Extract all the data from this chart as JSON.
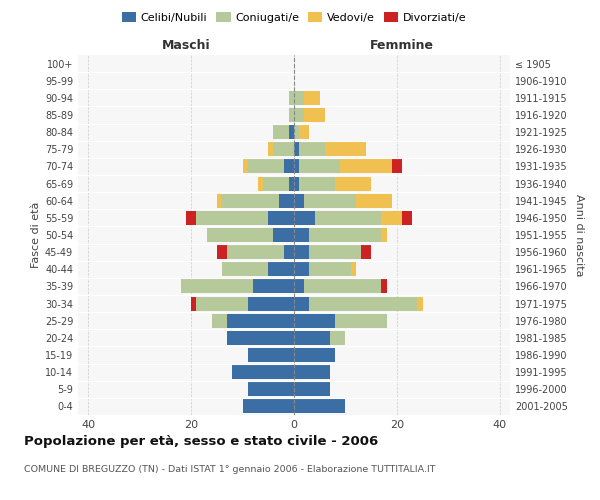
{
  "age_groups": [
    "0-4",
    "5-9",
    "10-14",
    "15-19",
    "20-24",
    "25-29",
    "30-34",
    "35-39",
    "40-44",
    "45-49",
    "50-54",
    "55-59",
    "60-64",
    "65-69",
    "70-74",
    "75-79",
    "80-84",
    "85-89",
    "90-94",
    "95-99",
    "100+"
  ],
  "birth_years": [
    "2001-2005",
    "1996-2000",
    "1991-1995",
    "1986-1990",
    "1981-1985",
    "1976-1980",
    "1971-1975",
    "1966-1970",
    "1961-1965",
    "1956-1960",
    "1951-1955",
    "1946-1950",
    "1941-1945",
    "1936-1940",
    "1931-1935",
    "1926-1930",
    "1921-1925",
    "1916-1920",
    "1911-1915",
    "1906-1910",
    "≤ 1905"
  ],
  "males_celibe": [
    10,
    9,
    12,
    9,
    13,
    13,
    9,
    8,
    5,
    2,
    4,
    5,
    3,
    1,
    2,
    0,
    1,
    0,
    0,
    0,
    0
  ],
  "males_coniugato": [
    0,
    0,
    0,
    0,
    0,
    3,
    10,
    14,
    9,
    11,
    13,
    14,
    11,
    5,
    7,
    4,
    3,
    1,
    1,
    0,
    0
  ],
  "males_vedovo": [
    0,
    0,
    0,
    0,
    0,
    0,
    0,
    0,
    0,
    0,
    0,
    0,
    1,
    1,
    1,
    1,
    0,
    0,
    0,
    0,
    0
  ],
  "males_divorziato": [
    0,
    0,
    0,
    0,
    0,
    0,
    1,
    0,
    0,
    2,
    0,
    2,
    0,
    0,
    0,
    0,
    0,
    0,
    0,
    0,
    0
  ],
  "females_nubile": [
    10,
    7,
    7,
    8,
    7,
    8,
    3,
    2,
    3,
    3,
    3,
    4,
    2,
    1,
    1,
    1,
    0,
    0,
    0,
    0,
    0
  ],
  "females_coniugata": [
    0,
    0,
    0,
    0,
    3,
    10,
    21,
    15,
    8,
    10,
    14,
    13,
    10,
    7,
    8,
    5,
    1,
    2,
    2,
    0,
    0
  ],
  "females_vedova": [
    0,
    0,
    0,
    0,
    0,
    0,
    1,
    0,
    1,
    0,
    1,
    4,
    7,
    7,
    10,
    8,
    2,
    4,
    3,
    0,
    0
  ],
  "females_divorziata": [
    0,
    0,
    0,
    0,
    0,
    0,
    0,
    1,
    0,
    2,
    0,
    2,
    0,
    0,
    2,
    0,
    0,
    0,
    0,
    0,
    0
  ],
  "color_celibe": "#3a6ea5",
  "color_coniugato": "#b5c99a",
  "color_vedovo": "#f0c050",
  "color_divorziato": "#cc2222",
  "xlim": 42,
  "title": "Popolazione per età, sesso e stato civile - 2006",
  "subtitle": "COMUNE DI BREGUZZO (TN) - Dati ISTAT 1° gennaio 2006 - Elaborazione TUTTITALIA.IT",
  "ylabel_left": "Fasce di età",
  "ylabel_right": "Anni di nascita",
  "label_maschi": "Maschi",
  "label_femmine": "Femmine",
  "legend_labels": [
    "Celibi/Nubili",
    "Coniugati/e",
    "Vedovi/e",
    "Divorziati/e"
  ],
  "xticks": [
    -40,
    -20,
    0,
    20,
    40
  ],
  "bg_color": "#f7f7f7"
}
